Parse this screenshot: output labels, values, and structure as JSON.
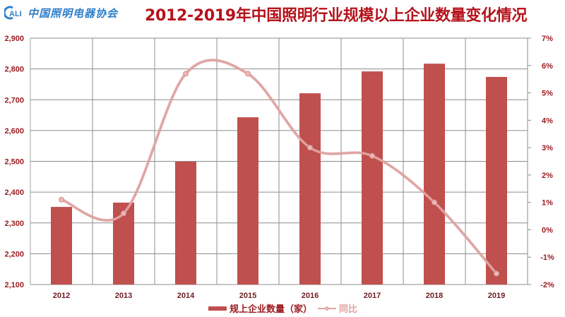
{
  "header": {
    "logo_abbr": "CALI",
    "logo_text": "中国照明电器协会",
    "title": "2012-2019年中国照明行业规模以上企业数量变化情况"
  },
  "legend": {
    "bar_label": "规上企业数量（家）",
    "line_label": "同比"
  },
  "colors": {
    "bar": "#c0504d",
    "line": "#e0a3a1",
    "title": "#b5121b",
    "axis_text": "#9b1c21",
    "grid": "#8c8c8c",
    "logo": "#2f7fc9"
  },
  "chart_data": {
    "type": "bar",
    "title": "2012-2019年中国照明行业规模以上企业数量变化情况",
    "xlabel": "",
    "ylabel": "",
    "categories": [
      "2012",
      "2013",
      "2014",
      "2015",
      "2016",
      "2017",
      "2018",
      "2019"
    ],
    "series": [
      {
        "name": "规上企业数量（家）",
        "type": "bar",
        "axis": "left",
        "values": [
          2352,
          2366,
          2499,
          2643,
          2721,
          2792,
          2817,
          2774
        ]
      },
      {
        "name": "同比",
        "type": "line",
        "smooth": true,
        "axis": "right",
        "unit": "%",
        "values": [
          1.1,
          0.6,
          5.7,
          5.7,
          3.0,
          2.7,
          1.0,
          -1.6
        ]
      }
    ],
    "ylim": [
      2100,
      2900
    ],
    "yticks": [
      "2,100",
      "2,200",
      "2,300",
      "2,400",
      "2,500",
      "2,600",
      "2,700",
      "2,800",
      "2,900"
    ],
    "y2lim": [
      -2,
      7
    ],
    "y2ticks": [
      "-2%",
      "-1%",
      "0%",
      "1%",
      "2%",
      "3%",
      "4%",
      "5%",
      "6%",
      "7%"
    ],
    "grid": true,
    "legend_position": "bottom"
  }
}
